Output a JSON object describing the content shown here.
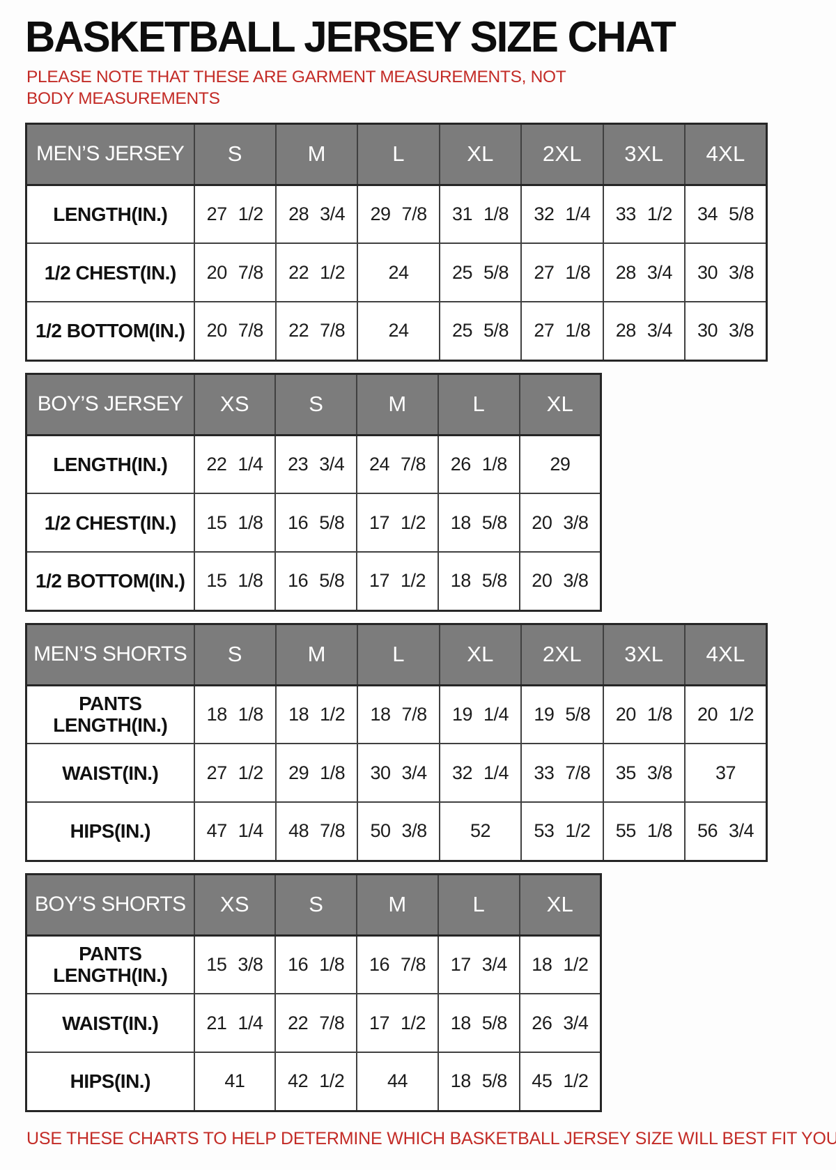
{
  "title": "BASKETBALL JERSEY SIZE CHAT",
  "note": "PLEASE NOTE THAT THESE ARE GARMENT MEASUREMENTS, NOT BODY MEASUREMENTS",
  "footer": "USE THESE CHARTS TO HELP DETERMINE WHICH BASKETBALL JERSEY SIZE WILL BEST FIT YOU.",
  "colors": {
    "header_bg": "#7c7c7c",
    "header_text": "#ffffff",
    "border": "#404040",
    "note_red": "#c32b26",
    "title_black": "#0d0d0d"
  },
  "chart_data": [
    {
      "type": "table",
      "title": "MEN’S JERSEY",
      "columns": [
        "S",
        "M",
        "L",
        "XL",
        "2XL",
        "3XL",
        "4XL"
      ],
      "rows": [
        {
          "label": "LENGTH(IN.)",
          "values": [
            "27 1/2",
            "28 3/4",
            "29 7/8",
            "31 1/8",
            "32 1/4",
            "33 1/2",
            "34 5/8"
          ]
        },
        {
          "label": "1/2 CHEST(IN.)",
          "values": [
            "20 7/8",
            "22 1/2",
            "24",
            "25 5/8",
            "27 1/8",
            "28 3/4",
            "30 3/8"
          ]
        },
        {
          "label": "1/2 BOTTOM(IN.)",
          "values": [
            "20 7/8",
            "22 7/8",
            "24",
            "25 5/8",
            "27 1/8",
            "28 3/4",
            "30 3/8"
          ]
        }
      ]
    },
    {
      "type": "table",
      "title": "BOY’S JERSEY",
      "columns": [
        "XS",
        "S",
        "M",
        "L",
        "XL"
      ],
      "rows": [
        {
          "label": "LENGTH(IN.)",
          "values": [
            "22 1/4",
            "23 3/4",
            "24 7/8",
            "26 1/8",
            "29"
          ]
        },
        {
          "label": "1/2 CHEST(IN.)",
          "values": [
            "15 1/8",
            "16 5/8",
            "17 1/2",
            "18 5/8",
            "20 3/8"
          ]
        },
        {
          "label": "1/2 BOTTOM(IN.)",
          "values": [
            "15 1/8",
            "16 5/8",
            "17 1/2",
            "18 5/8",
            "20 3/8"
          ]
        }
      ]
    },
    {
      "type": "table",
      "title": "MEN’S SHORTS",
      "columns": [
        "S",
        "M",
        "L",
        "XL",
        "2XL",
        "3XL",
        "4XL"
      ],
      "rows": [
        {
          "label": "PANTS LENGTH(IN.)",
          "values": [
            "18 1/8",
            "18 1/2",
            "18 7/8",
            "19 1/4",
            "19 5/8",
            "20 1/8",
            "20 1/2"
          ]
        },
        {
          "label": "WAIST(IN.)",
          "values": [
            "27 1/2",
            "29 1/8",
            "30 3/4",
            "32 1/4",
            "33 7/8",
            "35 3/8",
            "37"
          ]
        },
        {
          "label": "HIPS(IN.)",
          "values": [
            "47 1/4",
            "48 7/8",
            "50 3/8",
            "52",
            "53 1/2",
            "55 1/8",
            "56 3/4"
          ]
        }
      ]
    },
    {
      "type": "table",
      "title": "BOY’S SHORTS",
      "columns": [
        "XS",
        "S",
        "M",
        "L",
        "XL"
      ],
      "rows": [
        {
          "label": "PANTS LENGTH(IN.)",
          "values": [
            "15 3/8",
            "16 1/8",
            "16 7/8",
            "17 3/4",
            "18 1/2"
          ]
        },
        {
          "label": "WAIST(IN.)",
          "values": [
            "21 1/4",
            "22 7/8",
            "17 1/2",
            "18 5/8",
            "26 3/4"
          ]
        },
        {
          "label": "HIPS(IN.)",
          "values": [
            "41",
            "42 1/2",
            "44",
            "18 5/8",
            "45 1/2"
          ]
        }
      ]
    }
  ]
}
